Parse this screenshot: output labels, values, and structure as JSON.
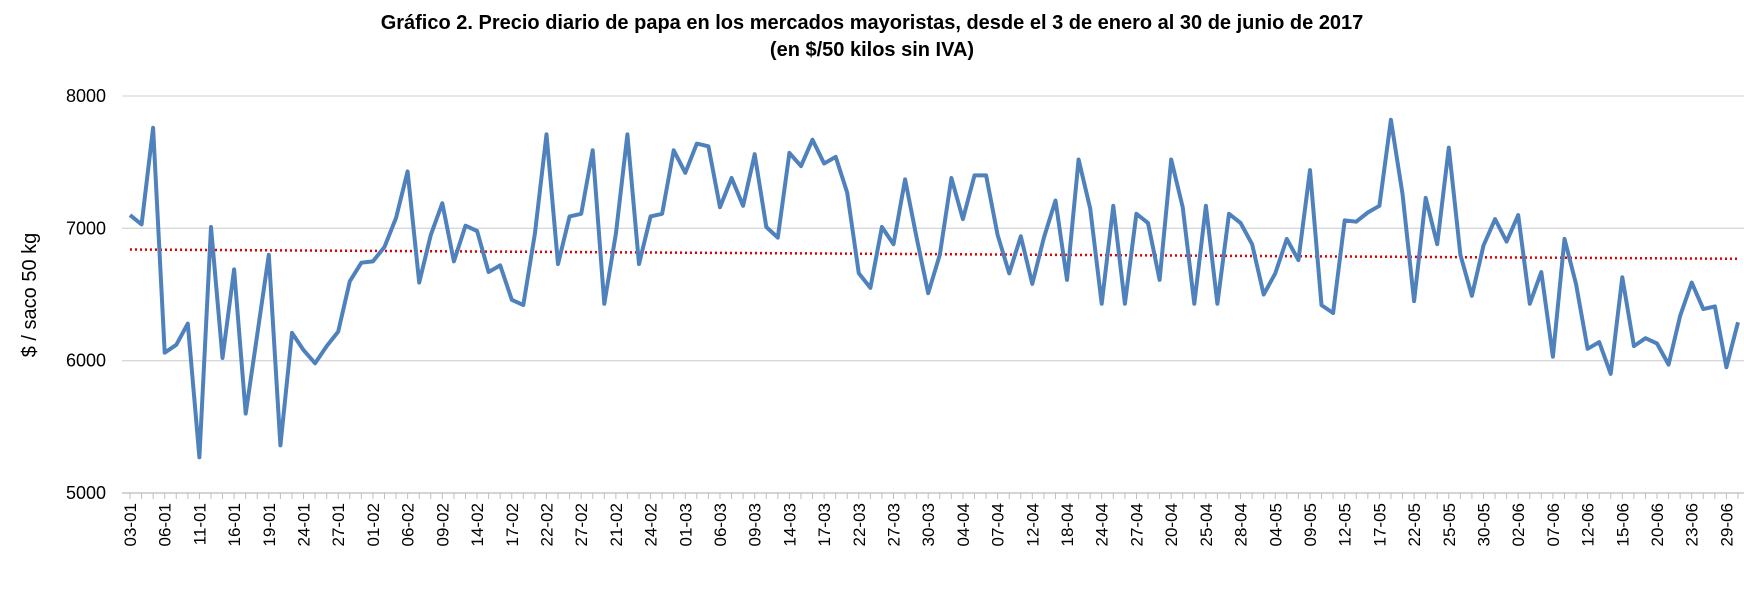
{
  "chart_data": {
    "type": "line",
    "title": "Gráfico 2. Precio diario de papa en los mercados mayoristas, desde el 3 de enero al 30 de junio de 2017",
    "subtitle": "(en $/50 kilos sin IVA)",
    "y_label": "$ / saco 50 kg",
    "categories": [
      "03-01",
      null,
      null,
      "06-01",
      null,
      null,
      "11-01",
      null,
      null,
      "16-01",
      null,
      null,
      "19-01",
      null,
      null,
      "24-01",
      null,
      null,
      "27-01",
      null,
      null,
      "01-02",
      null,
      null,
      "06-02",
      null,
      null,
      "09-02",
      null,
      null,
      "14-02",
      null,
      null,
      "17-02",
      null,
      null,
      "22-02",
      null,
      null,
      "27-02",
      null,
      null,
      "21-02",
      null,
      null,
      "24-02",
      null,
      null,
      "01-03",
      null,
      null,
      "06-03",
      null,
      null,
      "09-03",
      null,
      null,
      "14-03",
      null,
      null,
      "17-03",
      null,
      null,
      "22-03",
      null,
      null,
      "27-03",
      null,
      null,
      "30-03",
      null,
      null,
      "04-04",
      null,
      null,
      "07-04",
      null,
      null,
      "12-04",
      null,
      null,
      "18-04",
      null,
      null,
      "24-04",
      null,
      null,
      "27-04",
      null,
      null,
      "20-04",
      null,
      null,
      "25-04",
      null,
      null,
      "28-04",
      null,
      null,
      "04-05",
      null,
      null,
      "09-05",
      null,
      null,
      "12-05",
      null,
      null,
      "17-05",
      null,
      null,
      "22-05",
      null,
      null,
      "25-05",
      null,
      null,
      "30-05",
      null,
      null,
      "02-06",
      null,
      null,
      "07-06",
      null,
      null,
      "12-06",
      null,
      null,
      "15-06",
      null,
      null,
      "20-06",
      null,
      null,
      "23-06",
      null,
      null,
      "29-06",
      null
    ],
    "series": [
      {
        "color": "#4f81bd",
        "values": [
          7100,
          7030,
          7760,
          6060,
          6120,
          6280,
          5270,
          7010,
          6020,
          6690,
          5600,
          6200,
          6800,
          5360,
          6210,
          6080,
          5980,
          6110,
          6220,
          6600,
          6740,
          6750,
          6860,
          7080,
          7430,
          6590,
          6950,
          7190,
          6750,
          7020,
          6980,
          6670,
          6720,
          6460,
          6420,
          6960,
          7710,
          6730,
          7090,
          7110,
          7590,
          6430,
          6960,
          7710,
          6730,
          7090,
          7110,
          7590,
          7420,
          7640,
          7620,
          7160,
          7380,
          7170,
          7560,
          7010,
          6930,
          7570,
          7470,
          7670,
          7490,
          7540,
          7270,
          6660,
          6550,
          7010,
          6880,
          7370,
          6930,
          6510,
          6800,
          7380,
          7070,
          7400,
          7400,
          6950,
          6660,
          6940,
          6580,
          6930,
          7210,
          6610,
          7520,
          7150,
          6430,
          7170,
          6430,
          7110,
          7040,
          6610,
          7520,
          7160,
          6430,
          7170,
          6430,
          7110,
          7040,
          6880,
          6500,
          6660,
          6920,
          6760,
          7440,
          6420,
          6360,
          7060,
          7050,
          7120,
          7170,
          7820,
          7260,
          6450,
          7230,
          6880,
          7610,
          6800,
          6490,
          6870,
          7070,
          6900,
          7100,
          6430,
          6670,
          6030,
          6920,
          6580,
          6090,
          6140,
          5900,
          6630,
          6110,
          6170,
          6130,
          5970,
          6340,
          6590,
          6390,
          6410,
          5950,
          6290
        ]
      }
    ],
    "trend": {
      "color": "#e00000",
      "values": [
        6840,
        6770
      ]
    },
    "ylim": [
      5000,
      8000
    ],
    "yticks": [
      5000,
      6000,
      7000,
      8000
    ],
    "grid": true
  }
}
